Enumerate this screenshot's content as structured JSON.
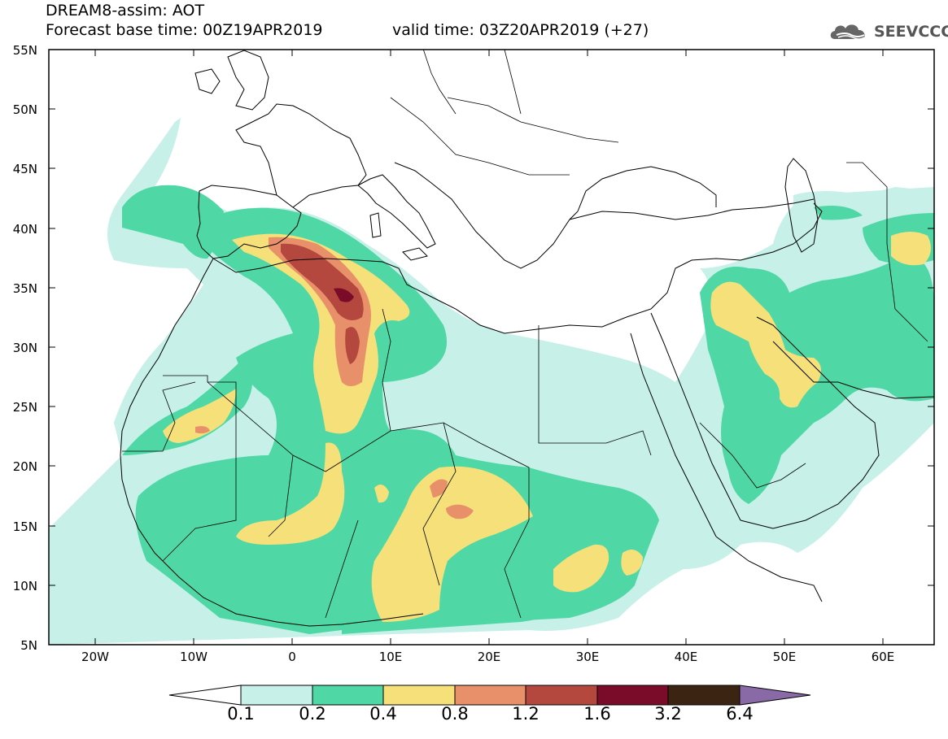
{
  "header": {
    "title": "DREAM8-assim: AOT",
    "base_time": "Forecast base time: 00Z19APR2019",
    "valid_time": "valid time: 03Z20APR2019 (+27)"
  },
  "logo": {
    "text": "SEEVCCC",
    "icon": "cloud-icon"
  },
  "map": {
    "lon_range": [
      -25,
      65
    ],
    "lat_range": [
      5,
      55
    ],
    "lat_ticks": [
      "55N",
      "50N",
      "45N",
      "40N",
      "35N",
      "30N",
      "25N",
      "20N",
      "15N",
      "10N",
      "5N"
    ],
    "lon_ticks": [
      "20W",
      "10W",
      "0",
      "10E",
      "20E",
      "30E",
      "40E",
      "50E",
      "60E"
    ],
    "variable": "Aerosol optical thickness"
  },
  "colorbar": {
    "levels": [
      "0.1",
      "0.2",
      "0.4",
      "0.8",
      "1.2",
      "1.6",
      "3.2",
      "6.4"
    ],
    "colors": [
      "#ffffff",
      "#c6f0e8",
      "#4fd8a5",
      "#f5e07a",
      "#e8906a",
      "#b4483e",
      "#7a0c2a",
      "#3c2412",
      "#8a6aa6"
    ]
  },
  "colors": {
    "c1": "#c6f0e8",
    "c2": "#4fd8a5",
    "c3": "#f5e07a",
    "c4": "#e8906a",
    "c5": "#b4483e",
    "c6": "#7a0c2a"
  }
}
